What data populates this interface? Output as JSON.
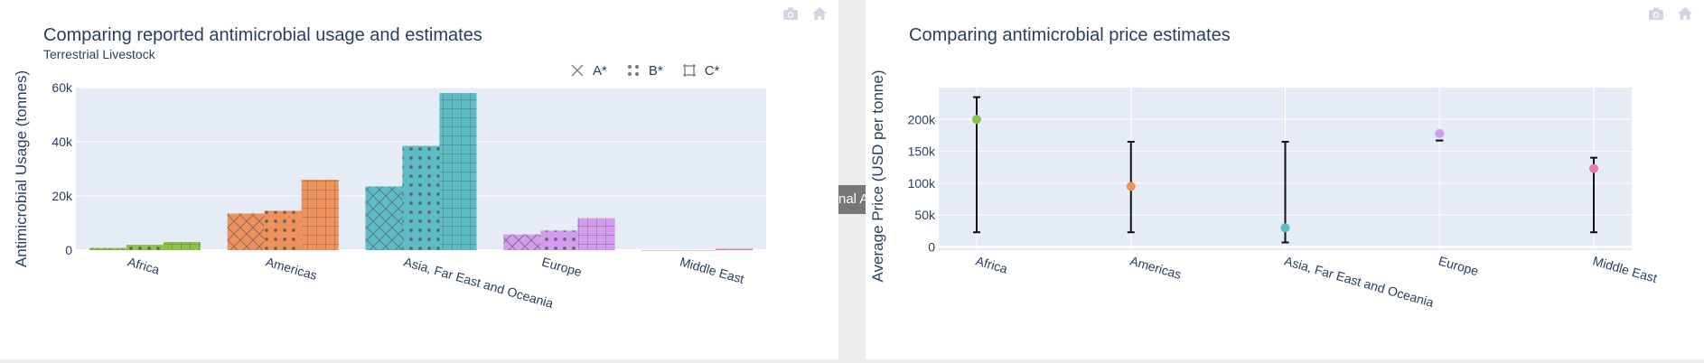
{
  "left_panel": {
    "title": "Comparing reported antimicrobial usage and estimates",
    "subtitle": "Terrestrial Livestock",
    "legend": [
      {
        "label": "A*",
        "pattern": "x"
      },
      {
        "label": "B*",
        "pattern": "dot"
      },
      {
        "label": "C*",
        "pattern": "grid"
      }
    ]
  },
  "right_panel": {
    "title": "Comparing antimicrobial price estimates"
  },
  "divider_tab": {
    "label": "nal A"
  },
  "icons": {
    "camera": "camera-icon",
    "home": "home-icon"
  },
  "colors": {
    "Africa": "#8fc24b",
    "Americas": "#ef915b",
    "Asia, Far East and Oceania": "#5dbcc6",
    "Europe": "#d39cee",
    "Middle East": "#e97ba5",
    "plot_bg": "#e5ecf6",
    "text": "#2a3f5f"
  },
  "chart_data": [
    {
      "type": "bar",
      "categories": [
        "Africa",
        "Americas",
        "Asia, Far East and Oceania",
        "Europe",
        "Middle East"
      ],
      "series": [
        {
          "name": "A*",
          "values": [
            800,
            13500,
            23500,
            5800,
            0
          ]
        },
        {
          "name": "B*",
          "values": [
            2000,
            14500,
            38500,
            7200,
            0
          ]
        },
        {
          "name": "C*",
          "values": [
            3000,
            26000,
            58000,
            11800,
            500
          ]
        }
      ],
      "ylabel": "Antimicrobial Usage (tonnes)",
      "xlabel": "",
      "ylim": [
        0,
        60000
      ],
      "yticks": [
        0,
        20000,
        40000,
        60000
      ],
      "ytick_labels": [
        "0",
        "20k",
        "40k",
        "60k"
      ],
      "grid": true
    },
    {
      "type": "scatter",
      "categories": [
        "Africa",
        "Americas",
        "Asia, Far East and Oceania",
        "Europe",
        "Middle East"
      ],
      "values": [
        200000,
        95000,
        30000,
        178000,
        123000
      ],
      "error_low": [
        23000,
        23000,
        7000,
        167000,
        23000
      ],
      "error_high": [
        235000,
        165000,
        165000,
        167000,
        140000
      ],
      "ylabel": "Average Price (USD per tonne)",
      "xlabel": "",
      "ylim": [
        -5000,
        250000
      ],
      "yticks": [
        0,
        50000,
        100000,
        150000,
        200000
      ],
      "ytick_labels": [
        "0",
        "50k",
        "100k",
        "150k",
        "200k"
      ],
      "grid": true
    }
  ]
}
